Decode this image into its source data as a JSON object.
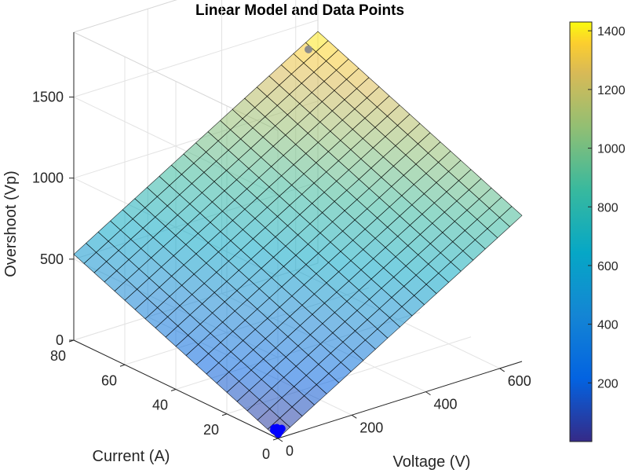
{
  "chart_data": {
    "type": "surface",
    "title": "Linear Model and Data Points",
    "xlabel": "Voltage (V)",
    "ylabel": "Current (A)",
    "zlabel": "Overshoot (Vp)",
    "xlim": [
      0,
      660
    ],
    "ylim": [
      0,
      80
    ],
    "zlim": [
      0,
      1900
    ],
    "x_ticks": [
      "0",
      "200",
      "400",
      "600"
    ],
    "y_ticks": [
      "0",
      "20",
      "40",
      "60",
      "80"
    ],
    "z_ticks": [
      "0",
      "500",
      "1000",
      "1500"
    ],
    "grid": true,
    "surface": {
      "model": "linear",
      "corners": [
        {
          "x": 0,
          "y": 0,
          "z": 0
        },
        {
          "x": 660,
          "y": 0,
          "z": 900
        },
        {
          "x": 0,
          "y": 80,
          "z": 530
        },
        {
          "x": 660,
          "y": 80,
          "z": 1430
        }
      ],
      "mesh_divisions": 20,
      "colormap": "parula",
      "alpha": 0.55
    },
    "points": [
      {
        "x": 600,
        "y": 75,
        "z": 1400,
        "color": "#8c8c8c"
      },
      {
        "x": 8,
        "y": 1,
        "z": 15,
        "color": "#0000ff"
      },
      {
        "x": 12,
        "y": 2,
        "z": 18,
        "color": "#0000ff"
      },
      {
        "x": 16,
        "y": 1.5,
        "z": 22,
        "color": "#0000ff"
      },
      {
        "x": 20,
        "y": 2.5,
        "z": 25,
        "color": "#0000ff"
      },
      {
        "x": 10,
        "y": 3,
        "z": 20,
        "color": "#0000ff"
      },
      {
        "x": 18,
        "y": 3,
        "z": 30,
        "color": "#0000ff"
      },
      {
        "x": 24,
        "y": 2,
        "z": 28,
        "color": "#0000ff"
      },
      {
        "x": 14,
        "y": 3.5,
        "z": 26,
        "color": "#0000ff"
      }
    ],
    "colorbar": {
      "range": [
        0,
        1430
      ],
      "ticks": [
        "200",
        "400",
        "600",
        "800",
        "1000",
        "1200",
        "1400"
      ]
    }
  }
}
